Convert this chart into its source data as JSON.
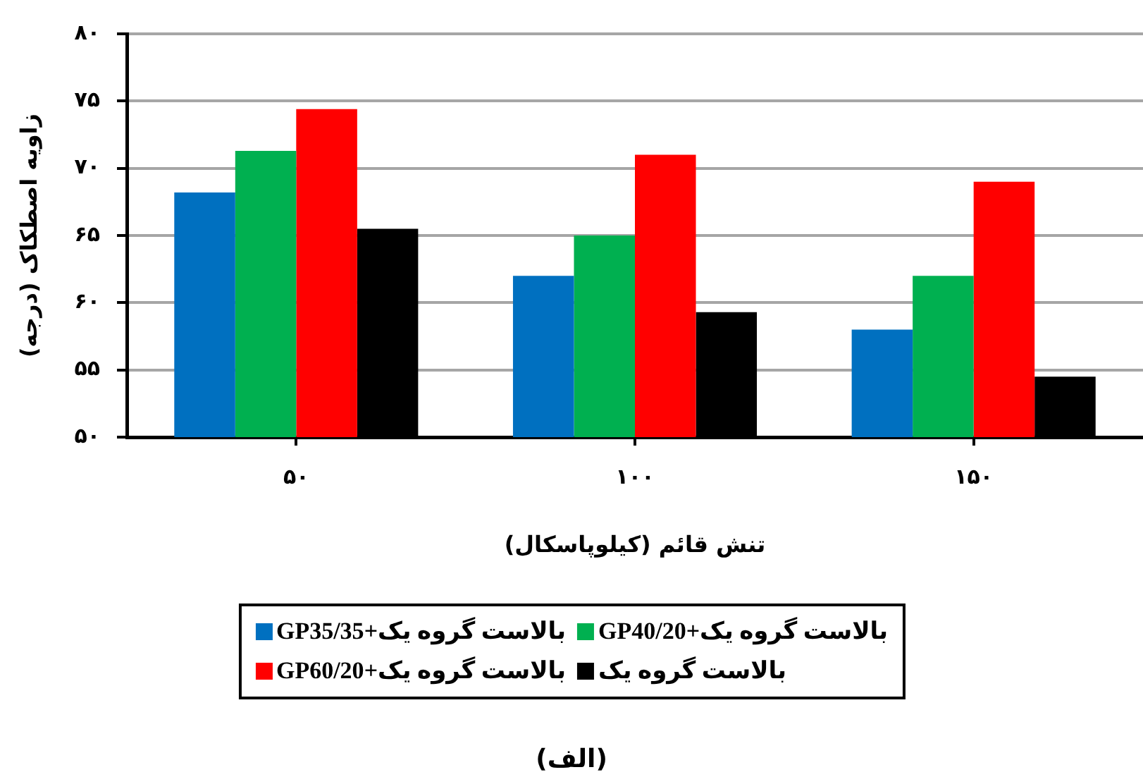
{
  "chart_data": {
    "type": "bar",
    "categories": [
      "۵۰",
      "۱۰۰",
      "۱۵۰"
    ],
    "xlabel": "تنش قائم (کیلوپاسکال)",
    "ylabel": "زاویه اصطکاک (درجه)",
    "ylim": [
      50,
      80
    ],
    "yticks": [
      {
        "value": 50,
        "label": "۵۰"
      },
      {
        "value": 55,
        "label": "۵۵"
      },
      {
        "value": 60,
        "label": "۶۰"
      },
      {
        "value": 65,
        "label": "۶۵"
      },
      {
        "value": 70,
        "label": "۷۰"
      },
      {
        "value": 75,
        "label": "۷۵"
      },
      {
        "value": 80,
        "label": "۸۰"
      }
    ],
    "series": [
      {
        "name": "بالاست گروه یک+GP35/35",
        "color": "#0070c0",
        "values": [
          68.2,
          62.0,
          58.0
        ]
      },
      {
        "name": "بالاست گروه یک+GP40/20",
        "color": "#00b050",
        "values": [
          71.3,
          65.0,
          62.0
        ]
      },
      {
        "name": "بالاست گروه یک+GP60/20",
        "color": "#ff0000",
        "values": [
          74.4,
          71.0,
          69.0
        ]
      },
      {
        "name": "بالاست گروه یک",
        "color": "#000000",
        "values": [
          65.5,
          59.3,
          54.5
        ]
      }
    ],
    "grid": "y",
    "legend": "bottom",
    "annotations": [
      "(الف)"
    ]
  }
}
